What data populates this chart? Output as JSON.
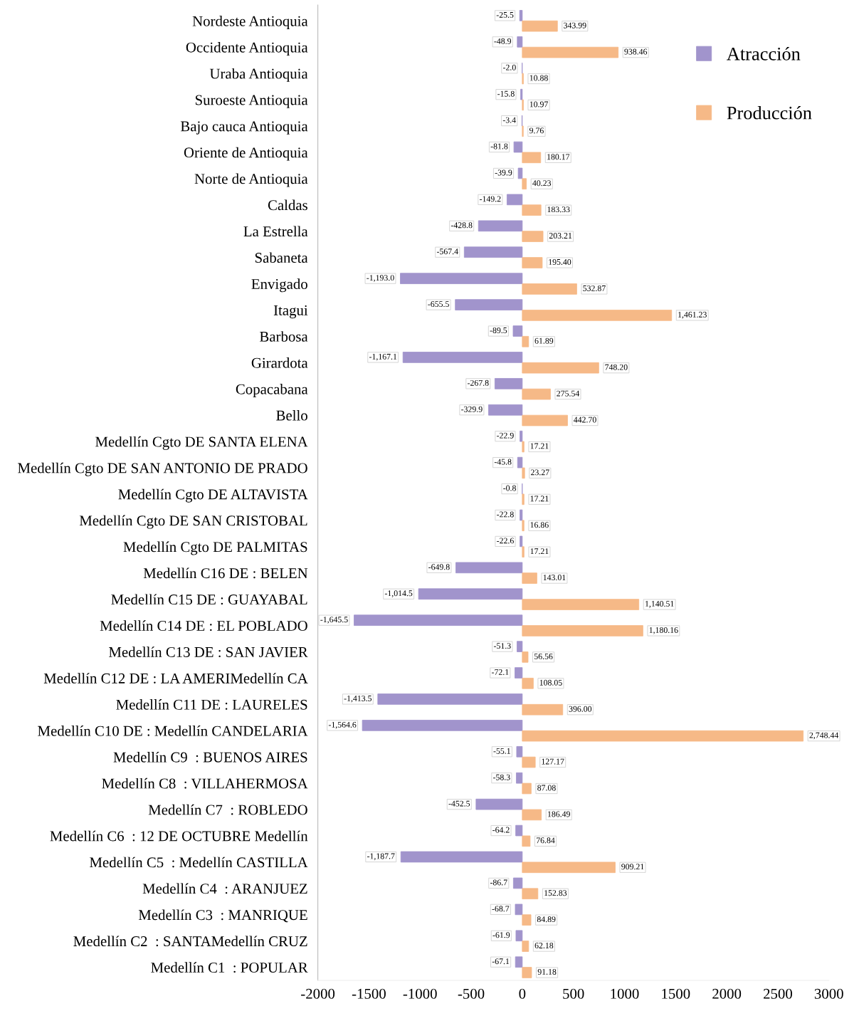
{
  "chart_data": {
    "type": "bar",
    "orientation": "horizontal",
    "categories": [
      "Nordeste Antioquia",
      "Occidente Antioquia",
      "Uraba Antioquia",
      "Suroeste Antioquia",
      "Bajo cauca Antioquia",
      "Oriente de Antioquia",
      "Norte de Antioquia",
      "Caldas",
      "La Estrella",
      "Sabaneta",
      "Envigado",
      "Itagui",
      "Barbosa",
      "Girardota",
      "Copacabana",
      "Bello",
      "Medellín Cgto DE SANTA ELENA",
      "Medellín Cgto DE SAN ANTONIO DE PRADO",
      "Medellín Cgto DE ALTAVISTA",
      "Medellín Cgto DE SAN CRISTOBAL",
      "Medellín Cgto DE PALMITAS",
      "Medellín C16 DE : BELEN",
      "Medellín C15 DE : GUAYABAL",
      "Medellín C14 DE : EL POBLADO",
      "Medellín C13 DE : SAN JAVIER",
      "Medellín C12 DE : LA AMERIMedellín CA",
      "Medellín C11 DE : LAURELES",
      "Medellín C10 DE : Medellín CANDELARIA",
      "Medellín C9  : BUENOS AIRES",
      "Medellín C8  : VILLAHERMOSA",
      "Medellín C7  : ROBLEDO",
      "Medellín C6  : 12 DE OCTUBRE Medellín",
      "Medellín C5  : Medellín CASTILLA",
      "Medellín C4  : ARANJUEZ",
      "Medellín C3  : MANRIQUE",
      "Medellín C2  : SANTAMedellín CRUZ",
      "Medellín C1  : POPULAR"
    ],
    "series": [
      {
        "name": "Atracción",
        "color": "#a194cc",
        "values": [
          -25.5,
          -48.9,
          -2.0,
          -15.8,
          -3.4,
          -81.8,
          -39.9,
          -149.2,
          -428.8,
          -567.4,
          -1193.0,
          -655.5,
          -89.5,
          -1167.1,
          -267.8,
          -329.9,
          -22.9,
          -45.8,
          -0.8,
          -22.8,
          -22.6,
          -649.8,
          -1014.5,
          -1645.5,
          -51.3,
          -72.1,
          -1413.5,
          -1564.6,
          -55.1,
          -58.3,
          -452.5,
          -64.2,
          -1187.7,
          -86.7,
          -68.7,
          -61.9,
          -67.1
        ],
        "value_labels": [
          "-25.5",
          "-48.9",
          "-2.0",
          "-15.8",
          "-3.4",
          "-81.8",
          "-39.9",
          "-149.2",
          "-428.8",
          "-567.4",
          "-1,193.0",
          "-655.5",
          "-89.5",
          "-1,167.1",
          "-267.8",
          "-329.9",
          "-22.9",
          "-45.8",
          "-0.8",
          "-22.8",
          "-22.6",
          "-649.8",
          "-1,014.5",
          "-1,645.5",
          "-51.3",
          "-72.1",
          "-1,413.5",
          "-1,564.6",
          "-55.1",
          "-58.3",
          "-452.5",
          "-64.2",
          "-1,187.7",
          "-86.7",
          "-68.7",
          "-61.9",
          "-67.1"
        ]
      },
      {
        "name": "Producción",
        "color": "#f6b987",
        "values": [
          343.99,
          938.46,
          10.88,
          10.97,
          9.76,
          180.17,
          40.23,
          183.33,
          203.21,
          195.4,
          532.87,
          1461.23,
          61.89,
          748.2,
          275.54,
          442.7,
          17.21,
          23.27,
          17.21,
          16.86,
          17.21,
          143.01,
          1140.51,
          1180.16,
          56.56,
          108.05,
          396.0,
          2748.44,
          127.17,
          87.08,
          186.49,
          76.84,
          909.21,
          152.83,
          84.89,
          62.18,
          91.18
        ],
        "value_labels": [
          "343.99",
          "938.46",
          "10.88",
          "10.97",
          "9.76",
          "180.17",
          "40.23",
          "183.33",
          "203.21",
          "195.40",
          "532.87",
          "1,461.23",
          "61.89",
          "748.20",
          "275.54",
          "442.70",
          "17.21",
          "23.27",
          "17.21",
          "16.86",
          "17.21",
          "143.01",
          "1,140.51",
          "1,180.16",
          "56.56",
          "108.05",
          "396.00",
          "2,748.44",
          "127.17",
          "87.08",
          "186.49",
          "76.84",
          "909.21",
          "152.83",
          "84.89",
          "62.18",
          "91.18"
        ]
      }
    ],
    "xlim": [
      -2000,
      3000
    ],
    "xticks": [
      -2000,
      -1500,
      -1000,
      -500,
      0,
      500,
      1000,
      1500,
      2000,
      2500,
      3000
    ],
    "grid": false,
    "legend": "top right"
  }
}
